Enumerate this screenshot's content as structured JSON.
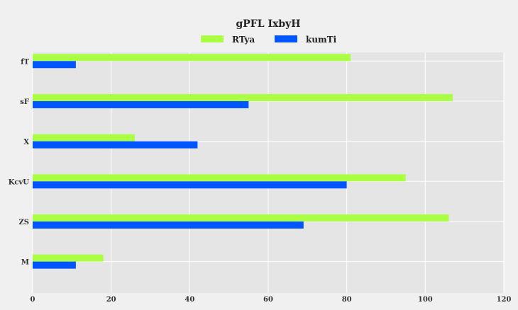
{
  "chart_data": {
    "type": "bar",
    "orientation": "horizontal",
    "title": "gPFL IxbyH",
    "xlabel": "",
    "ylabel": "",
    "categories": [
      "fT",
      "sF",
      "X",
      "KcvU",
      "ZS",
      "M"
    ],
    "series": [
      {
        "name": "RTya",
        "color": "#aaff44",
        "values": [
          81,
          107,
          26,
          95,
          106,
          18
        ]
      },
      {
        "name": "kumTi",
        "color": "#0055ff",
        "values": [
          11,
          55,
          42,
          80,
          69,
          11
        ]
      }
    ],
    "xlim": [
      0,
      120
    ],
    "xticks": [
      "0",
      "20",
      "40",
      "60",
      "80",
      "100",
      "120"
    ],
    "grid": true,
    "legend_position": "top-center",
    "background_color": "#f0f0f0",
    "plot_background_color": "#e5e5e5",
    "grid_color": "#ffffff"
  }
}
